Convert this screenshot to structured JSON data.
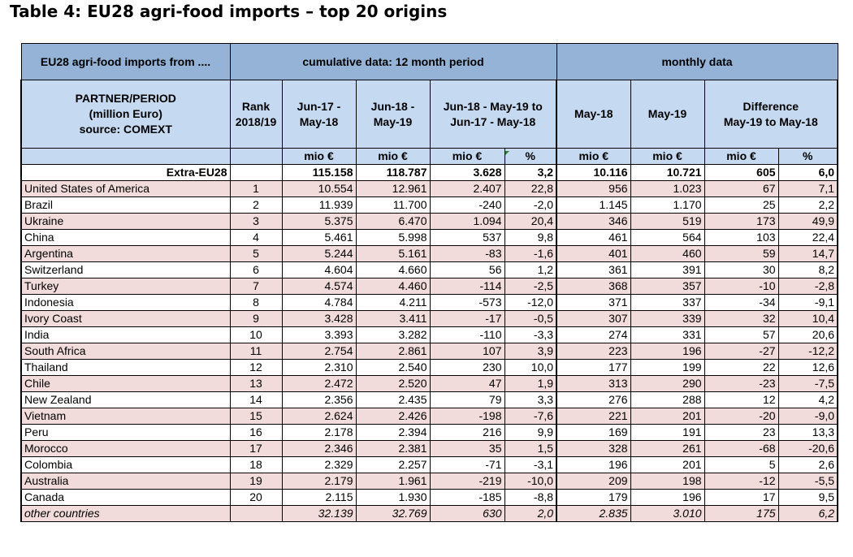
{
  "title": "Table 4: EU28 agri-food imports – top 20 origins",
  "header": {
    "row1": {
      "first": "EU28 agri-food imports from ....",
      "cumulative": "cumulative data: 12 month period",
      "monthly": "monthly data"
    },
    "row2": {
      "partner_lines": [
        "PARTNER/PERIOD",
        "(million Euro)",
        "source: COMEXT"
      ],
      "rank_lines": [
        "Rank",
        "2018/19"
      ],
      "c1_lines": [
        "Jun-17 -",
        "May-18"
      ],
      "c2_lines": [
        "Jun-18 -",
        "May-19"
      ],
      "c3_lines": [
        "Jun-18 - May-19 to",
        "Jun-17 - May-18"
      ],
      "m1": "May-18",
      "m2": "May-19",
      "diff_lines": [
        "Difference",
        "May-19 to May-18"
      ]
    },
    "units": [
      "mio €",
      "mio €",
      "mio €",
      "%",
      "mio €",
      "mio €",
      "mio €",
      "%"
    ]
  },
  "total": {
    "name": "Extra-EU28",
    "values": [
      "115.158",
      "118.787",
      "3.628",
      "3,2",
      "10.116",
      "10.721",
      "605",
      "6,0"
    ]
  },
  "rows": [
    {
      "name": "United States of America",
      "rank": "1",
      "values": [
        "10.554",
        "12.961",
        "2.407",
        "22,8",
        "956",
        "1.023",
        "67",
        "7,1"
      ]
    },
    {
      "name": "Brazil",
      "rank": "2",
      "values": [
        "11.939",
        "11.700",
        "-240",
        "-2,0",
        "1.145",
        "1.170",
        "25",
        "2,2"
      ]
    },
    {
      "name": "Ukraine",
      "rank": "3",
      "values": [
        "5.375",
        "6.470",
        "1.094",
        "20,4",
        "346",
        "519",
        "173",
        "49,9"
      ]
    },
    {
      "name": "China",
      "rank": "4",
      "values": [
        "5.461",
        "5.998",
        "537",
        "9,8",
        "461",
        "564",
        "103",
        "22,4"
      ]
    },
    {
      "name": "Argentina",
      "rank": "5",
      "values": [
        "5.244",
        "5.161",
        "-83",
        "-1,6",
        "401",
        "460",
        "59",
        "14,7"
      ]
    },
    {
      "name": "Switzerland",
      "rank": "6",
      "values": [
        "4.604",
        "4.660",
        "56",
        "1,2",
        "361",
        "391",
        "30",
        "8,2"
      ]
    },
    {
      "name": "Turkey",
      "rank": "7",
      "values": [
        "4.574",
        "4.460",
        "-114",
        "-2,5",
        "368",
        "357",
        "-10",
        "-2,8"
      ]
    },
    {
      "name": "Indonesia",
      "rank": "8",
      "values": [
        "4.784",
        "4.211",
        "-573",
        "-12,0",
        "371",
        "337",
        "-34",
        "-9,1"
      ]
    },
    {
      "name": "Ivory Coast",
      "rank": "9",
      "values": [
        "3.428",
        "3.411",
        "-17",
        "-0,5",
        "307",
        "339",
        "32",
        "10,4"
      ]
    },
    {
      "name": "India",
      "rank": "10",
      "values": [
        "3.393",
        "3.282",
        "-110",
        "-3,3",
        "274",
        "331",
        "57",
        "20,6"
      ]
    },
    {
      "name": "South Africa",
      "rank": "11",
      "values": [
        "2.754",
        "2.861",
        "107",
        "3,9",
        "223",
        "196",
        "-27",
        "-12,2"
      ]
    },
    {
      "name": "Thailand",
      "rank": "12",
      "values": [
        "2.310",
        "2.540",
        "230",
        "10,0",
        "177",
        "199",
        "22",
        "12,6"
      ]
    },
    {
      "name": "Chile",
      "rank": "13",
      "values": [
        "2.472",
        "2.520",
        "47",
        "1,9",
        "313",
        "290",
        "-23",
        "-7,5"
      ]
    },
    {
      "name": "New Zealand",
      "rank": "14",
      "values": [
        "2.356",
        "2.435",
        "79",
        "3,3",
        "276",
        "288",
        "12",
        "4,2"
      ]
    },
    {
      "name": "Vietnam",
      "rank": "15",
      "values": [
        "2.624",
        "2.426",
        "-198",
        "-7,6",
        "221",
        "201",
        "-20",
        "-9,0"
      ]
    },
    {
      "name": "Peru",
      "rank": "16",
      "values": [
        "2.178",
        "2.394",
        "216",
        "9,9",
        "169",
        "191",
        "23",
        "13,3"
      ]
    },
    {
      "name": "Morocco",
      "rank": "17",
      "values": [
        "2.346",
        "2.381",
        "35",
        "1,5",
        "328",
        "261",
        "-68",
        "-20,6"
      ]
    },
    {
      "name": "Colombia",
      "rank": "18",
      "values": [
        "2.329",
        "2.257",
        "-71",
        "-3,1",
        "196",
        "201",
        "5",
        "2,6"
      ]
    },
    {
      "name": "Australia",
      "rank": "19",
      "values": [
        "2.179",
        "1.961",
        "-219",
        "-10,0",
        "209",
        "198",
        "-12",
        "-5,5"
      ]
    },
    {
      "name": "Canada",
      "rank": "20",
      "values": [
        "2.115",
        "1.930",
        "-185",
        "-8,8",
        "179",
        "196",
        "17",
        "9,5"
      ]
    }
  ],
  "other": {
    "name": "other countries",
    "values": [
      "32.139",
      "32.769",
      "630",
      "2,0",
      "2.835",
      "3.010",
      "175",
      "6,2"
    ]
  },
  "colors": {
    "header_dark": "#95b3d7",
    "header_light": "#c5d9f1",
    "row_stripe": "#f2dcdb",
    "row_plain": "#ffffff"
  }
}
